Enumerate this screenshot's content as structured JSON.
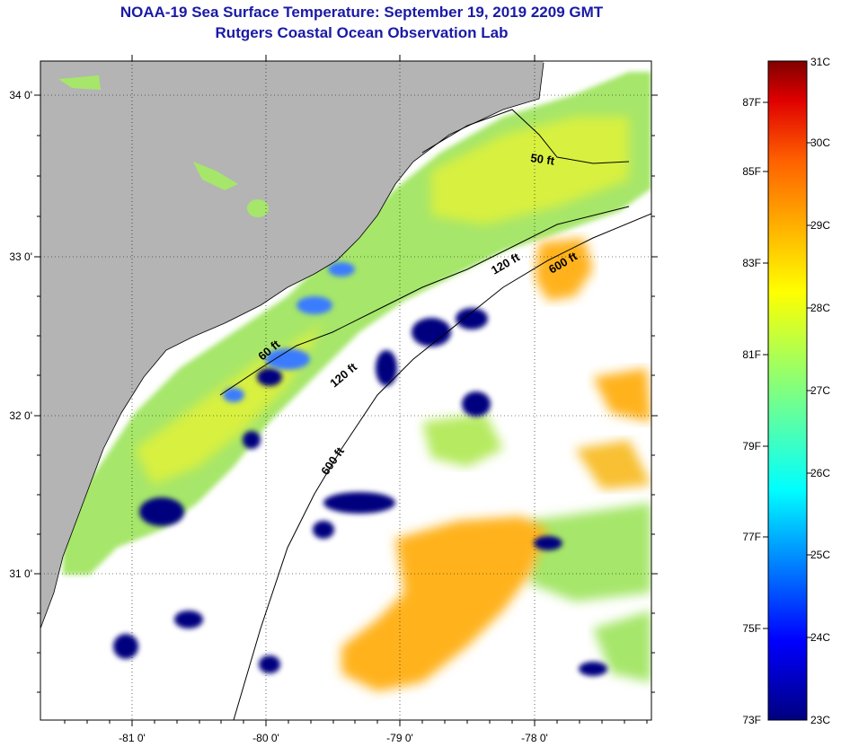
{
  "title_line1": "NOAA-19 Sea Surface Temperature:  September 19, 2019 2209 GMT",
  "title_line2": "Rutgers Coastal Ocean Observation Lab",
  "map": {
    "lat_ticks": [
      "34 0'",
      "33 0'",
      "32 0'",
      "31 0'"
    ],
    "lon_ticks": [
      "-81 0'",
      "-80 0'",
      "-79 0'",
      "-78 0'"
    ],
    "isobaths": [
      "50 ft",
      "60 ft",
      "120 ft",
      "120 ft",
      "600 ft",
      "600 ft"
    ],
    "colors": {
      "land": "#b4b4b4",
      "cloud": "#ffffff",
      "cold": "#00007f",
      "cool": "#60c8ff",
      "warm_green": "#a6e66a",
      "yellow_green": "#d8f040",
      "orange": "#ffb21a"
    }
  },
  "colorbar": {
    "fahrenheit_labels": [
      "87F",
      "85F",
      "83F",
      "81F",
      "79F",
      "77F",
      "75F",
      "73F"
    ],
    "celsius_labels": [
      "31C",
      "30C",
      "29C",
      "28C",
      "27C",
      "26C",
      "25C",
      "24C",
      "23C"
    ],
    "colors": [
      "#800000",
      "#ff0000",
      "#ff8000",
      "#ffff00",
      "#80ff80",
      "#00ffff",
      "#0080ff",
      "#0000ff",
      "#000080"
    ]
  }
}
